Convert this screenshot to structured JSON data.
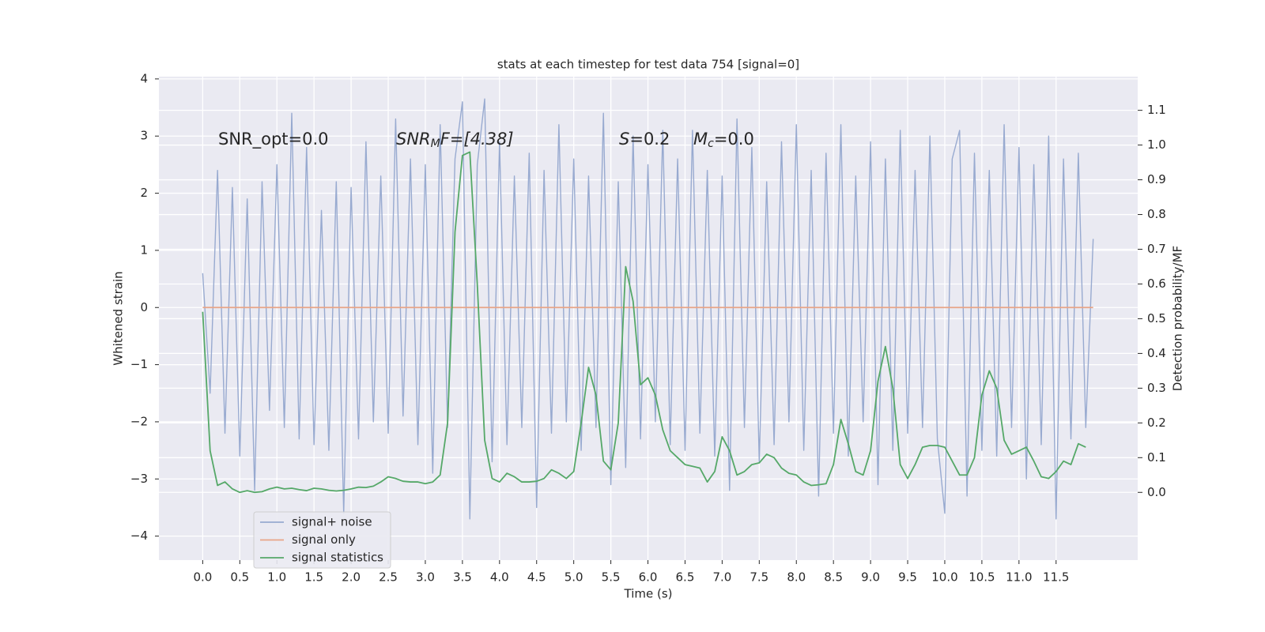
{
  "chart_data": {
    "type": "line",
    "title": "stats at each timestep for test data 754 [signal=0]",
    "x_label": "Time (s)",
    "y_label": "Whitened strain",
    "y2_label": "Detection probability/MF",
    "annotations": [
      [
        "SNR_opt=0.0"
      ],
      [
        "SNR",
        "M",
        "F=[4.38]"
      ],
      [
        "S",
        "=0.2"
      ],
      [
        "M",
        "c",
        "=0.0"
      ]
    ],
    "xlim": [
      -0.59,
      12.6
    ],
    "xticks": [
      {
        "value": 0,
        "label": "0.0"
      },
      0.5,
      {
        "value": 1,
        "label": "1.0"
      },
      1.5,
      {
        "value": 2,
        "label": "2.0"
      },
      2.5,
      {
        "value": 3,
        "label": "3.0"
      },
      3.5,
      {
        "value": 4,
        "label": "4.0"
      },
      4.5,
      {
        "value": 5,
        "label": "5.0"
      },
      5.5,
      {
        "value": 6,
        "label": "6.0"
      },
      6.5,
      {
        "value": 7,
        "label": "7.0"
      },
      7.5,
      {
        "value": 8,
        "label": "8.0"
      },
      8.5,
      {
        "value": 9,
        "label": "9.0"
      },
      9.5,
      {
        "value": 10,
        "label": "10.0"
      },
      10.5,
      {
        "value": 11,
        "label": "11.0"
      },
      11.5
    ],
    "ylim": [
      -4.42,
      4.04
    ],
    "yticks": [
      {
        "value": -4,
        "label": "−4"
      },
      {
        "value": -3,
        "label": "−3"
      },
      {
        "value": -2,
        "label": "−2"
      },
      {
        "value": -1,
        "label": "−1"
      },
      0,
      1,
      2,
      3,
      4
    ],
    "y2lim": [
      -0.195,
      1.197
    ],
    "y2ticks": [
      {
        "value": 0,
        "label": "0.0"
      },
      0.1,
      0.2,
      0.3,
      0.4,
      0.5,
      0.6,
      0.7,
      0.8,
      0.9,
      {
        "value": 1,
        "label": "1.0"
      },
      1.1
    ],
    "grid": true,
    "legend": "lower left",
    "series": [
      {
        "name": "signal+ noise",
        "color": "#98aad0",
        "x": [
          0,
          0.1,
          0.2,
          0.3,
          0.4,
          0.5,
          0.6,
          0.7,
          0.8,
          0.9,
          1,
          1.1,
          1.2,
          1.3,
          1.4,
          1.5,
          1.6,
          1.7,
          1.8,
          1.9,
          2,
          2.1,
          2.2,
          2.3,
          2.4,
          2.5,
          2.6,
          2.7,
          2.8,
          2.9,
          3,
          3.1,
          3.2,
          3.3,
          3.4,
          3.5,
          3.6,
          3.7,
          3.8,
          3.9,
          4,
          4.1,
          4.2,
          4.3,
          4.4,
          4.5,
          4.6,
          4.7,
          4.8,
          4.9,
          5,
          5.1,
          5.2,
          5.3,
          5.4,
          5.5,
          5.6,
          5.7,
          5.8,
          5.9,
          6,
          6.1,
          6.2,
          6.3,
          6.4,
          6.5,
          6.6,
          6.7,
          6.8,
          6.9,
          7,
          7.1,
          7.2,
          7.3,
          7.4,
          7.5,
          7.6,
          7.7,
          7.8,
          7.9,
          8,
          8.1,
          8.2,
          8.3,
          8.4,
          8.5,
          8.6,
          8.7,
          8.8,
          8.9,
          9,
          9.1,
          9.2,
          9.3,
          9.4,
          9.5,
          9.6,
          9.7,
          9.8,
          9.9,
          10,
          10.1,
          10.2,
          10.3,
          10.4,
          10.5,
          10.6,
          10.7,
          10.8,
          10.9,
          11,
          11.1,
          11.2,
          11.3,
          11.4,
          11.5,
          11.6,
          11.7,
          11.8,
          11.9,
          12
        ],
        "values": [
          0.6,
          -1.5,
          2.4,
          -2.2,
          2.1,
          -2.6,
          1.9,
          -3.2,
          2.2,
          -1.8,
          2.5,
          -2.1,
          3.4,
          -2.3,
          2.8,
          -2.4,
          1.7,
          -2.5,
          2.2,
          -3.6,
          2.1,
          -2.3,
          2.9,
          -2.0,
          2.3,
          -2.2,
          3.3,
          -1.9,
          2.6,
          -2.4,
          2.5,
          -2.9,
          3.2,
          -2.1,
          2.6,
          3.6,
          -3.7,
          2.5,
          3.65,
          -2.7,
          2.9,
          -2.4,
          2.3,
          -2.1,
          2.7,
          -3.5,
          2.4,
          -2.2,
          3.2,
          -2.0,
          2.6,
          -2.5,
          2.3,
          -2.1,
          3.4,
          -3.1,
          2.2,
          -2.8,
          3.0,
          -2.3,
          2.5,
          -2.0,
          3.1,
          -2.4,
          2.6,
          -2.5,
          3.1,
          -2.2,
          2.4,
          -2.6,
          2.3,
          -3.2,
          3.3,
          -2.1,
          2.8,
          -2.7,
          2.2,
          -2.4,
          2.9,
          -2.0,
          3.2,
          -2.5,
          2.4,
          -3.3,
          2.7,
          -2.2,
          3.2,
          -2.6,
          2.3,
          -2.0,
          2.9,
          -3.1,
          2.6,
          -2.5,
          3.1,
          -2.2,
          2.4,
          -2.1,
          3.0,
          -2.3,
          -3.6,
          2.6,
          3.1,
          -3.3,
          2.7,
          -2.5,
          2.4,
          -2.6,
          3.2,
          -2.1,
          2.8,
          -3.0,
          2.5,
          -2.4,
          3.0,
          -3.7,
          2.6,
          -2.3,
          2.7,
          -2.1,
          1.2
        ]
      },
      {
        "name": "signal only",
        "color": "#e8a587",
        "x": [
          0,
          12
        ],
        "values": [
          0,
          0
        ]
      },
      {
        "name": "signal statistics",
        "color": "#55a868",
        "axis": "y2",
        "x": [
          0,
          0.1,
          0.2,
          0.3,
          0.4,
          0.5,
          0.6,
          0.7,
          0.8,
          0.9,
          1,
          1.1,
          1.2,
          1.3,
          1.4,
          1.5,
          1.6,
          1.7,
          1.8,
          1.9,
          2,
          2.1,
          2.2,
          2.3,
          2.4,
          2.5,
          2.6,
          2.7,
          2.8,
          2.9,
          3,
          3.1,
          3.2,
          3.3,
          3.4,
          3.5,
          3.6,
          3.7,
          3.8,
          3.9,
          4,
          4.1,
          4.2,
          4.3,
          4.4,
          4.5,
          4.6,
          4.7,
          4.8,
          4.9,
          5,
          5.1,
          5.2,
          5.3,
          5.4,
          5.5,
          5.6,
          5.7,
          5.8,
          5.9,
          6,
          6.1,
          6.2,
          6.3,
          6.4,
          6.5,
          6.6,
          6.7,
          6.8,
          6.9,
          7,
          7.1,
          7.2,
          7.3,
          7.4,
          7.5,
          7.6,
          7.7,
          7.8,
          7.9,
          8,
          8.1,
          8.2,
          8.3,
          8.4,
          8.5,
          8.6,
          8.7,
          8.8,
          8.9,
          9,
          9.1,
          9.2,
          9.3,
          9.4,
          9.5,
          9.6,
          9.7,
          9.8,
          9.9,
          10,
          10.1,
          10.2,
          10.3,
          10.4,
          10.5,
          10.6,
          10.7,
          10.8,
          10.9,
          11,
          11.1,
          11.2,
          11.3,
          11.4,
          11.5,
          11.6,
          11.7,
          11.8,
          11.9
        ],
        "values": [
          0.52,
          0.12,
          0.02,
          0.03,
          0.01,
          0.0,
          0.005,
          0.0,
          0.002,
          0.01,
          0.015,
          0.01,
          0.012,
          0.008,
          0.005,
          0.012,
          0.01,
          0.006,
          0.004,
          0.006,
          0.01,
          0.015,
          0.014,
          0.018,
          0.03,
          0.045,
          0.04,
          0.032,
          0.03,
          0.03,
          0.025,
          0.03,
          0.05,
          0.2,
          0.75,
          0.97,
          0.98,
          0.6,
          0.15,
          0.04,
          0.03,
          0.055,
          0.045,
          0.03,
          0.03,
          0.032,
          0.04,
          0.065,
          0.055,
          0.04,
          0.06,
          0.2,
          0.36,
          0.28,
          0.09,
          0.065,
          0.2,
          0.65,
          0.55,
          0.31,
          0.33,
          0.28,
          0.18,
          0.12,
          0.1,
          0.08,
          0.075,
          0.07,
          0.03,
          0.06,
          0.16,
          0.12,
          0.05,
          0.06,
          0.08,
          0.085,
          0.11,
          0.1,
          0.07,
          0.055,
          0.05,
          0.03,
          0.02,
          0.022,
          0.025,
          0.08,
          0.21,
          0.14,
          0.06,
          0.05,
          0.12,
          0.32,
          0.42,
          0.3,
          0.08,
          0.04,
          0.08,
          0.13,
          0.135,
          0.135,
          0.13,
          0.09,
          0.05,
          0.05,
          0.1,
          0.28,
          0.35,
          0.3,
          0.15,
          0.11,
          0.12,
          0.13,
          0.09,
          0.045,
          0.04,
          0.06,
          0.09,
          0.08,
          0.14,
          0.13
        ]
      }
    ]
  }
}
